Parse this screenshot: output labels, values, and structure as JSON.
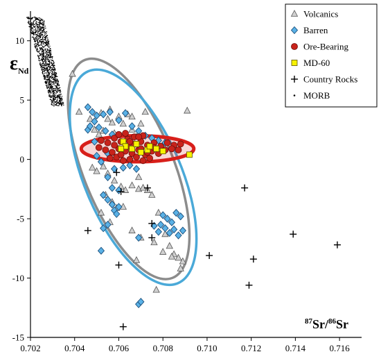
{
  "chart_data": {
    "type": "scatter",
    "title": "",
    "xlabel": {
      "iso_top_sup": "87",
      "iso_top": "Sr",
      "slash": "/",
      "iso_bottom_sup": "86",
      "iso_bottom": "Sr"
    },
    "ylabel": {
      "symbol": "ε",
      "subscript": "Nd"
    },
    "xlim": [
      0.702,
      0.717
    ],
    "ylim": [
      -15,
      12.5
    ],
    "xticks": [
      "0.702",
      "0.704",
      "0.706",
      "0.708",
      "0.710",
      "0.712",
      "0.714",
      "0.716"
    ],
    "yticks": [
      "10",
      "5",
      "0",
      "-5",
      "-10",
      "-15"
    ],
    "legend_position": "top-right",
    "legend": [
      {
        "label": "Volcanics",
        "marker": "triangle",
        "color": "#c8c8c8"
      },
      {
        "label": "Barren",
        "marker": "diamond",
        "color": "#5ab1e6"
      },
      {
        "label": "Ore-Bearing",
        "marker": "circle",
        "color": "#c8231b"
      },
      {
        "label": "MD-60",
        "marker": "square",
        "color": "#f7f200"
      },
      {
        "label": "Country Rocks",
        "marker": "plus",
        "color": "#000000"
      },
      {
        "label": "MORB",
        "marker": "dot",
        "color": "#000000"
      }
    ],
    "ellipses": [
      {
        "name": "gray",
        "color": "#8c8c8c",
        "cx": 0.70645,
        "cy": -0.8,
        "rx": 0.00205,
        "ry": 9.9,
        "rotation_deg": -22
      },
      {
        "name": "blue",
        "color": "#4aa9d8",
        "cx": 0.70665,
        "cy": -1.5,
        "rx": 0.0022,
        "ry": 9.7,
        "rotation_deg": -23
      },
      {
        "name": "red",
        "color": "#d81f1a",
        "cx": 0.70685,
        "cy": 0.9,
        "rx": 0.00255,
        "ry": 1.1,
        "rotation_deg": 0
      }
    ],
    "series": [
      {
        "name": "Volcanics",
        "points": [
          [
            0.7039,
            7.2
          ],
          [
            0.7042,
            4.0
          ],
          [
            0.7047,
            3.4
          ],
          [
            0.7049,
            2.5
          ],
          [
            0.7051,
            2.1
          ],
          [
            0.7053,
            2.4
          ],
          [
            0.7055,
            3.4
          ],
          [
            0.7057,
            3.1
          ],
          [
            0.7058,
            2.2
          ],
          [
            0.706,
            3.6
          ],
          [
            0.7062,
            3.0
          ],
          [
            0.7064,
            3.8
          ],
          [
            0.7066,
            2.5
          ],
          [
            0.7068,
            1.9
          ],
          [
            0.707,
            3.0
          ],
          [
            0.7052,
            3.9
          ],
          [
            0.7056,
            4.2
          ],
          [
            0.705,
            -1.0
          ],
          [
            0.7053,
            -0.6
          ],
          [
            0.7055,
            -1.2
          ],
          [
            0.7058,
            -1.8
          ],
          [
            0.7061,
            -2.3
          ],
          [
            0.7063,
            -2.6
          ],
          [
            0.7066,
            -2.2
          ],
          [
            0.7069,
            -2.5
          ],
          [
            0.7071,
            -2.4
          ],
          [
            0.7054,
            -3.0
          ],
          [
            0.7057,
            -3.6
          ],
          [
            0.7059,
            -4.1
          ],
          [
            0.7062,
            -4.0
          ],
          [
            0.7052,
            -4.5
          ],
          [
            0.7056,
            -5.3
          ],
          [
            0.7073,
            -2.6
          ],
          [
            0.7075,
            -3.0
          ],
          [
            0.7078,
            -4.5
          ],
          [
            0.7081,
            -6.3
          ],
          [
            0.7083,
            -7.3
          ],
          [
            0.7085,
            -8.0
          ],
          [
            0.7087,
            -8.3
          ],
          [
            0.7089,
            -8.6
          ],
          [
            0.7084,
            -8.2
          ],
          [
            0.708,
            -7.8
          ],
          [
            0.7076,
            -7.0
          ],
          [
            0.707,
            -6.6
          ],
          [
            0.7066,
            -6.0
          ],
          [
            0.7088,
            -9.2
          ],
          [
            0.7068,
            -8.5
          ],
          [
            0.7077,
            -11.0
          ],
          [
            0.7091,
            4.1
          ],
          [
            0.7072,
            4.0
          ],
          [
            0.7066,
            3.6
          ],
          [
            0.7048,
            -0.7
          ],
          [
            0.7069,
            -1.5
          ]
        ]
      },
      {
        "name": "Barren",
        "points": [
          [
            0.7046,
            4.4
          ],
          [
            0.7048,
            4.0
          ],
          [
            0.705,
            3.7
          ],
          [
            0.7053,
            3.8
          ],
          [
            0.7056,
            4.0
          ],
          [
            0.7049,
            3.2
          ],
          [
            0.7051,
            2.7
          ],
          [
            0.7046,
            2.5
          ],
          [
            0.7047,
            2.8
          ],
          [
            0.7054,
            2.4
          ],
          [
            0.7057,
            2.1
          ],
          [
            0.706,
            3.3
          ],
          [
            0.7063,
            3.9
          ],
          [
            0.7066,
            2.8
          ],
          [
            0.7069,
            2.4
          ],
          [
            0.7072,
            2.0
          ],
          [
            0.7075,
            1.8
          ],
          [
            0.7078,
            1.6
          ],
          [
            0.7081,
            1.4
          ],
          [
            0.7049,
            1.5
          ],
          [
            0.705,
            0.3
          ],
          [
            0.7052,
            -0.2
          ],
          [
            0.7055,
            0.5
          ],
          [
            0.7058,
            -0.8
          ],
          [
            0.7062,
            -0.7
          ],
          [
            0.7065,
            -0.5
          ],
          [
            0.7068,
            -0.8
          ],
          [
            0.7055,
            -1.5
          ],
          [
            0.7057,
            -2.4
          ],
          [
            0.706,
            -2.6
          ],
          [
            0.7053,
            -3.0
          ],
          [
            0.7055,
            -3.4
          ],
          [
            0.7057,
            -3.8
          ],
          [
            0.7058,
            -4.3
          ],
          [
            0.706,
            -4.0
          ],
          [
            0.7059,
            -4.6
          ],
          [
            0.7055,
            -5.5
          ],
          [
            0.7053,
            -5.8
          ],
          [
            0.7069,
            -6.6
          ],
          [
            0.7052,
            -7.7
          ],
          [
            0.708,
            -4.7
          ],
          [
            0.7082,
            -5.0
          ],
          [
            0.7084,
            -5.3
          ],
          [
            0.7086,
            -4.5
          ],
          [
            0.7088,
            -4.8
          ],
          [
            0.7079,
            -5.5
          ],
          [
            0.7081,
            -5.8
          ],
          [
            0.7083,
            -6.2
          ],
          [
            0.7085,
            -5.9
          ],
          [
            0.7087,
            -6.4
          ],
          [
            0.7089,
            -6.0
          ],
          [
            0.7076,
            -5.6
          ],
          [
            0.7078,
            -6.1
          ],
          [
            0.7069,
            -12.2
          ],
          [
            0.707,
            -12.0
          ]
        ]
      },
      {
        "name": "Ore-Bearing",
        "points": [
          [
            0.7052,
            1.6
          ],
          [
            0.7055,
            1.4
          ],
          [
            0.7058,
            1.8
          ],
          [
            0.7061,
            1.5
          ],
          [
            0.7064,
            1.7
          ],
          [
            0.7067,
            1.3
          ],
          [
            0.707,
            1.5
          ],
          [
            0.7073,
            1.2
          ],
          [
            0.7076,
            1.4
          ],
          [
            0.7079,
            1.1
          ],
          [
            0.7082,
            1.4
          ],
          [
            0.7085,
            1.2
          ],
          [
            0.7088,
            1.3
          ],
          [
            0.7054,
            0.8
          ],
          [
            0.7057,
            0.6
          ],
          [
            0.706,
            0.9
          ],
          [
            0.7063,
            0.7
          ],
          [
            0.7066,
            0.5
          ],
          [
            0.7069,
            0.8
          ],
          [
            0.7072,
            0.4
          ],
          [
            0.7075,
            0.7
          ],
          [
            0.7078,
            0.5
          ],
          [
            0.7081,
            0.8
          ],
          [
            0.7056,
            0.1
          ],
          [
            0.7059,
            0.2
          ],
          [
            0.7062,
            -0.1
          ],
          [
            0.7065,
            0.0
          ],
          [
            0.7068,
            0.2
          ],
          [
            0.7071,
            -0.1
          ],
          [
            0.7074,
            0.1
          ],
          [
            0.706,
            2.1
          ],
          [
            0.7063,
            2.2
          ],
          [
            0.7067,
            1.9
          ],
          [
            0.7071,
            2.0
          ],
          [
            0.7051,
            1.0
          ],
          [
            0.7084,
            0.9
          ],
          [
            0.7087,
            0.8
          ],
          [
            0.7058,
            1.2
          ],
          [
            0.7064,
            1.1
          ],
          [
            0.707,
            0.9
          ],
          [
            0.7076,
            1.0
          ],
          [
            0.7065,
            1.5
          ],
          [
            0.7069,
            1.9
          ],
          [
            0.7061,
            0.4
          ],
          [
            0.7073,
            0.6
          ]
        ]
      },
      {
        "name": "MD-60",
        "points": [
          [
            0.7062,
            1.5
          ],
          [
            0.7063,
            1.1
          ],
          [
            0.7066,
            0.9
          ],
          [
            0.7068,
            1.3
          ],
          [
            0.707,
            0.6
          ],
          [
            0.7073,
            0.8
          ],
          [
            0.7074,
            1.1
          ],
          [
            0.7077,
            0.9
          ],
          [
            0.708,
            0.7
          ],
          [
            0.7061,
            0.9
          ],
          [
            0.7092,
            0.4
          ]
        ]
      },
      {
        "name": "Country Rocks",
        "points": [
          [
            0.7059,
            -1.1
          ],
          [
            0.7061,
            -2.7
          ],
          [
            0.7073,
            -2.4
          ],
          [
            0.7046,
            -6.0
          ],
          [
            0.7075,
            -5.4
          ],
          [
            0.7075,
            -6.6
          ],
          [
            0.706,
            -8.9
          ],
          [
            0.7062,
            -14.1
          ],
          [
            0.7101,
            -8.1
          ],
          [
            0.7117,
            -2.4
          ],
          [
            0.7121,
            -8.4
          ],
          [
            0.7119,
            -10.6
          ],
          [
            0.7139,
            -6.3
          ],
          [
            0.7159,
            -7.2
          ]
        ]
      }
    ],
    "morb_cloud": {
      "name": "MORB",
      "x_range": [
        0.7022,
        0.7036
      ],
      "y_range": [
        4.5,
        12.0
      ],
      "count": 1200
    }
  }
}
